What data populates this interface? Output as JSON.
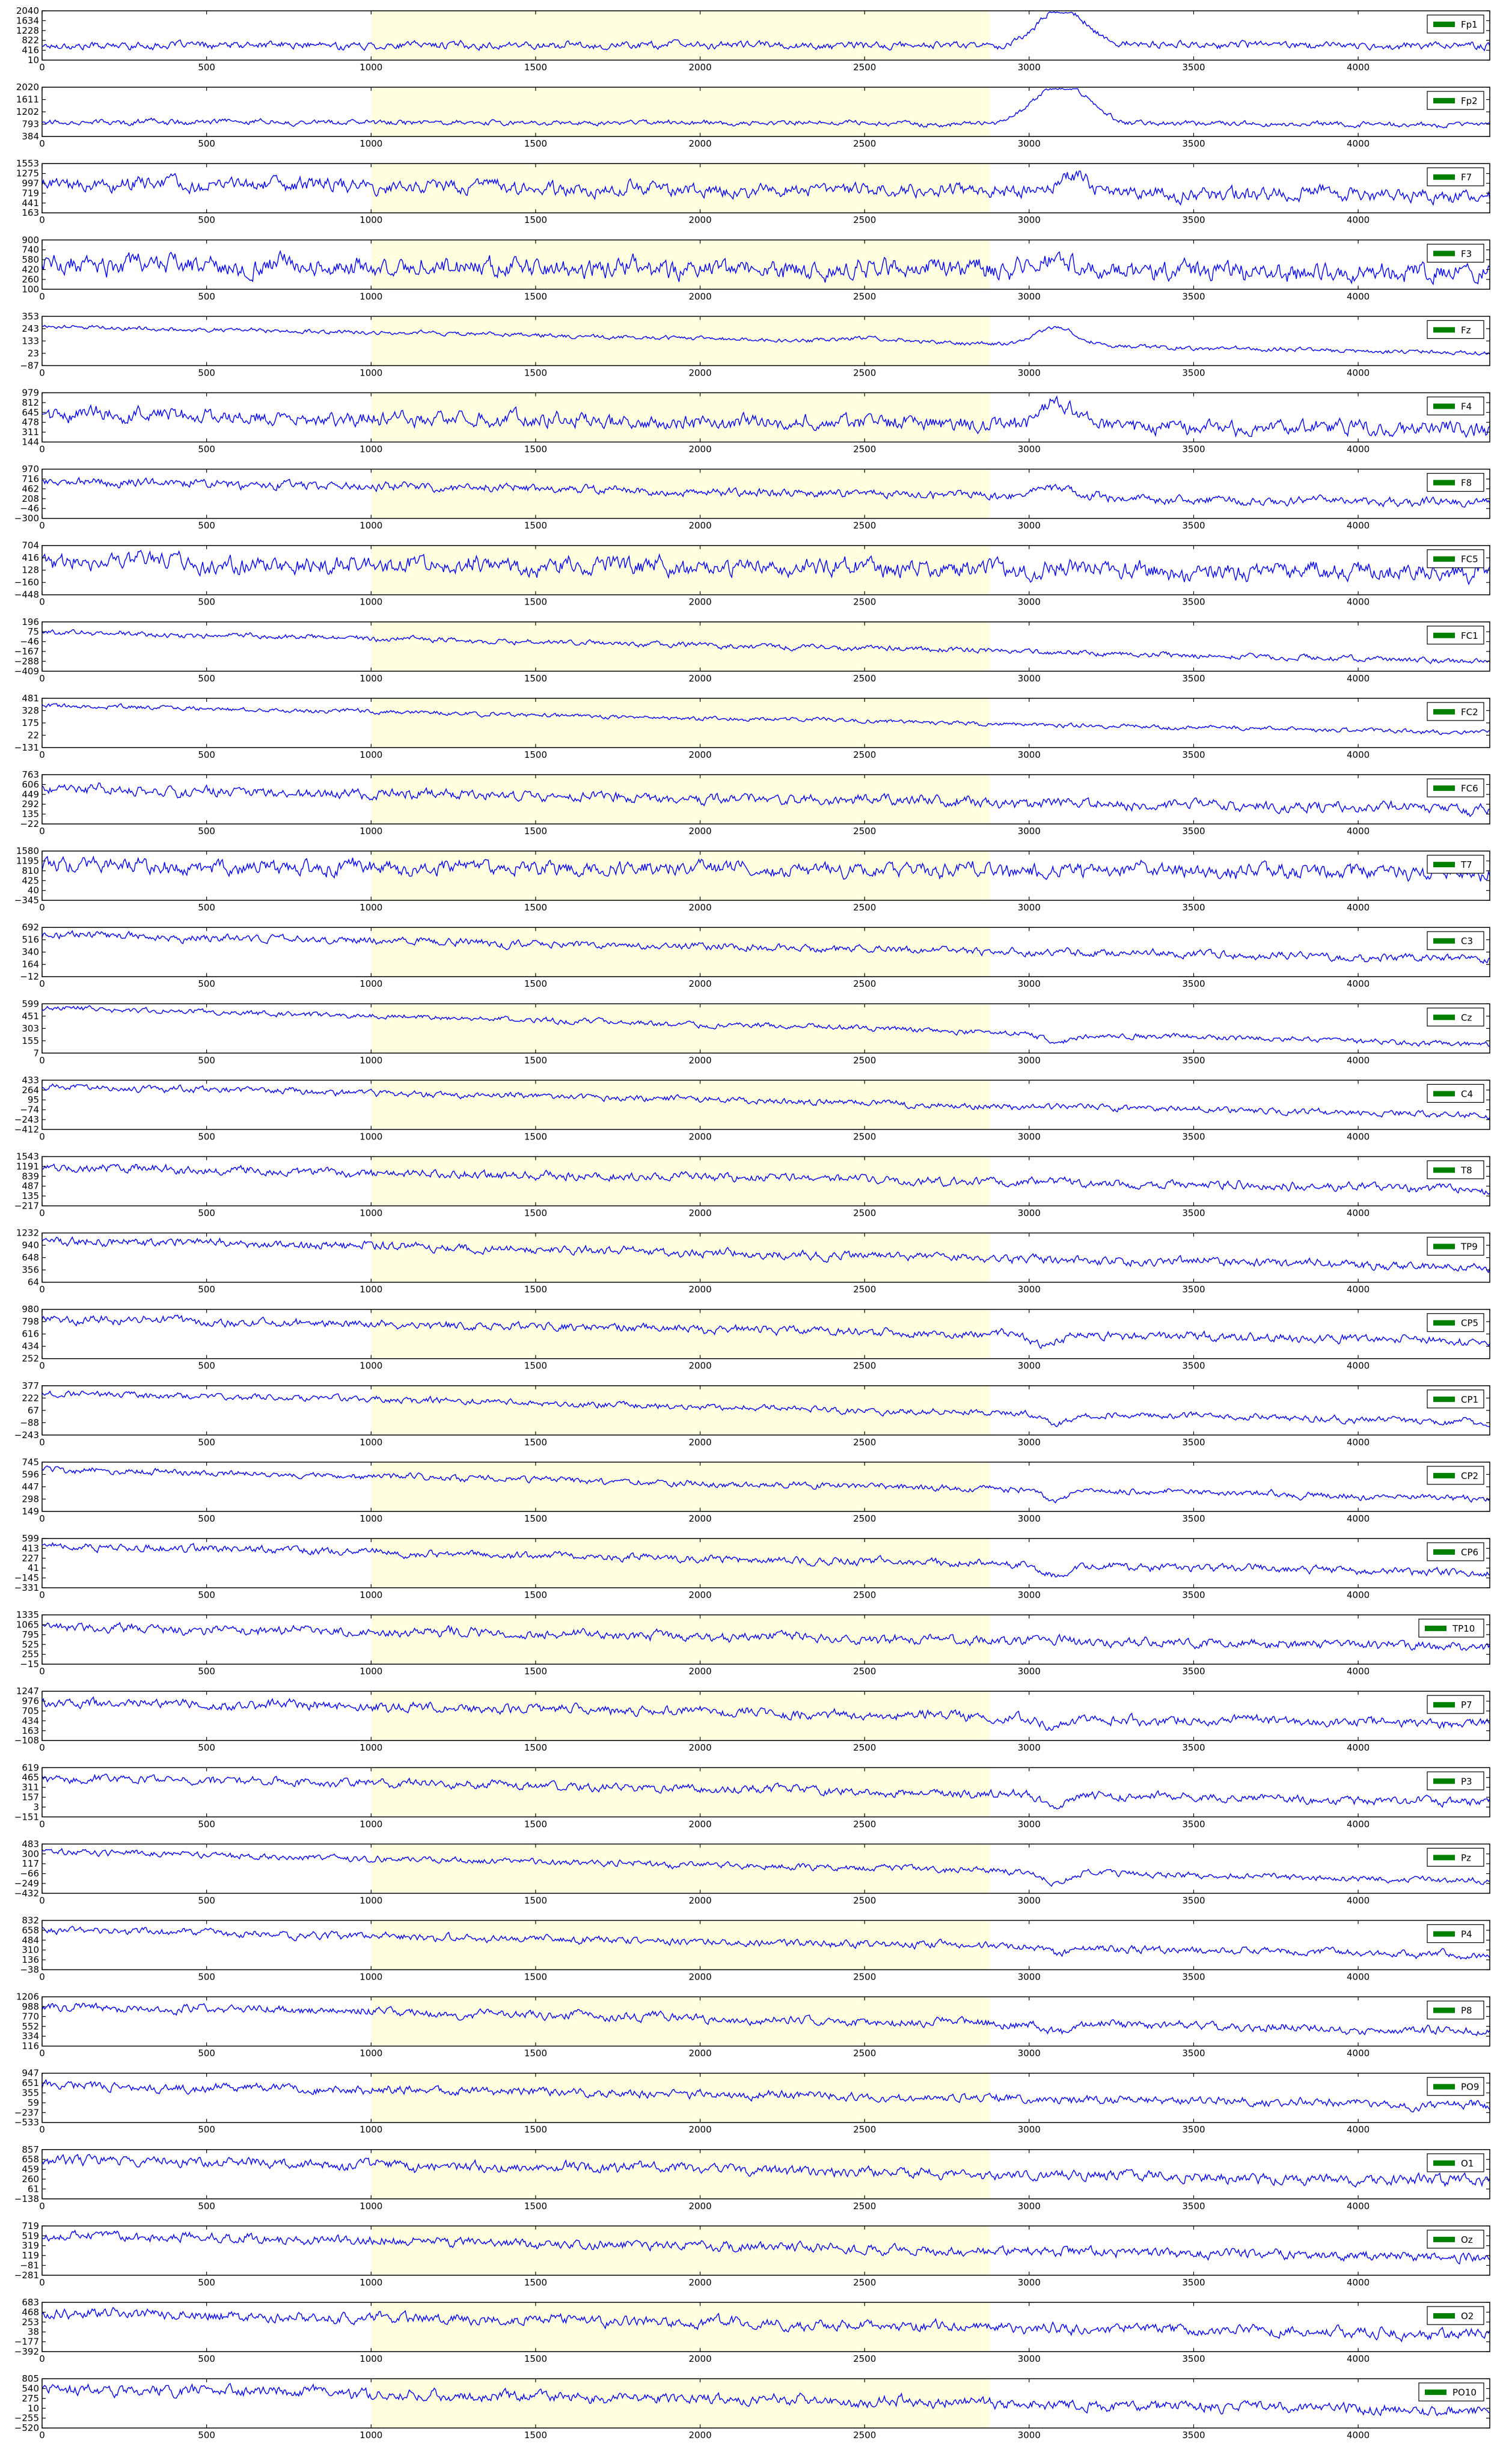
{
  "chart_data": {
    "type": "line",
    "layout": "stacked-subplots",
    "x_ticks": [
      0,
      500,
      1000,
      1500,
      2000,
      2500,
      3000,
      3500,
      4000
    ],
    "xlim": [
      0,
      4400
    ],
    "highlight_span": [
      1000,
      2880
    ],
    "grid": false,
    "legend": "top-right",
    "series_color": "#0000ff",
    "legend_swatch_color": "#008000",
    "highlight_color": "#ffffe0",
    "subplots": [
      {
        "name": "Fp1",
        "y_ticks": [
          "10",
          "416",
          "822",
          "1228",
          "1634",
          "2040"
        ],
        "ylim": [
          10,
          2040
        ],
        "base": 0.3,
        "noise": 0.07,
        "trend": 0.0,
        "bumps": [
          [
            3100,
            70,
            0.78
          ]
        ]
      },
      {
        "name": "Fp2",
        "y_ticks": [
          "384",
          "793",
          "1202",
          "1611",
          "2020"
        ],
        "ylim": [
          384,
          2020
        ],
        "base": 0.3,
        "noise": 0.05,
        "trend": -0.05,
        "bumps": [
          [
            3100,
            80,
            0.8
          ]
        ]
      },
      {
        "name": "F7",
        "y_ticks": [
          "163",
          "441",
          "719",
          "997",
          "1275",
          "1553"
        ],
        "ylim": [
          163,
          1553
        ],
        "base": 0.6,
        "noise": 0.13,
        "trend": -0.25,
        "bumps": [
          [
            3130,
            50,
            0.3
          ]
        ]
      },
      {
        "name": "F3",
        "y_ticks": [
          "100",
          "260",
          "420",
          "580",
          "740",
          "900"
        ],
        "ylim": [
          100,
          900
        ],
        "base": 0.5,
        "noise": 0.18,
        "trend": -0.15,
        "bumps": [
          [
            3080,
            50,
            0.3
          ]
        ]
      },
      {
        "name": "Fz",
        "y_ticks": [
          "-87",
          "23",
          "133",
          "243",
          "353"
        ],
        "ylim": [
          -87,
          353
        ],
        "base": 0.8,
        "noise": 0.04,
        "trend": -0.55,
        "bumps": [
          [
            3080,
            60,
            0.35
          ],
          [
            2550,
            90,
            0.08
          ]
        ]
      },
      {
        "name": "F4",
        "y_ticks": [
          "144",
          "311",
          "478",
          "645",
          "812",
          "979"
        ],
        "ylim": [
          144,
          979
        ],
        "base": 0.55,
        "noise": 0.14,
        "trend": -0.3,
        "bumps": [
          [
            3080,
            50,
            0.4
          ]
        ]
      },
      {
        "name": "F8",
        "y_ticks": [
          "-300",
          "-46",
          "208",
          "462",
          "716",
          "970"
        ],
        "ylim": [
          -300,
          970
        ],
        "base": 0.75,
        "noise": 0.08,
        "trend": -0.45,
        "bumps": [
          [
            3080,
            60,
            0.2
          ]
        ]
      },
      {
        "name": "FC5",
        "y_ticks": [
          "-448",
          "-160",
          "128",
          "416",
          "704"
        ],
        "ylim": [
          -448,
          704
        ],
        "base": 0.65,
        "noise": 0.16,
        "trend": -0.2,
        "bumps": []
      },
      {
        "name": "FC1",
        "y_ticks": [
          "-409",
          "-288",
          "-167",
          "-46",
          "75",
          "196"
        ],
        "ylim": [
          -409,
          196
        ],
        "base": 0.8,
        "noise": 0.05,
        "trend": -0.6,
        "bumps": []
      },
      {
        "name": "FC2",
        "y_ticks": [
          "-131",
          "22",
          "175",
          "328",
          "481"
        ],
        "ylim": [
          -131,
          481
        ],
        "base": 0.85,
        "noise": 0.04,
        "trend": -0.55,
        "bumps": []
      },
      {
        "name": "FC6",
        "y_ticks": [
          "-22",
          "135",
          "292",
          "449",
          "606",
          "763"
        ],
        "ylim": [
          -22,
          763
        ],
        "base": 0.7,
        "noise": 0.1,
        "trend": -0.4,
        "bumps": []
      },
      {
        "name": "T7",
        "y_ticks": [
          "-345",
          "40",
          "425",
          "810",
          "1195",
          "1580"
        ],
        "ylim": [
          -345,
          1580
        ],
        "base": 0.7,
        "noise": 0.14,
        "trend": -0.15,
        "bumps": []
      },
      {
        "name": "C3",
        "y_ticks": [
          "-12",
          "164",
          "340",
          "516",
          "692"
        ],
        "ylim": [
          -12,
          692
        ],
        "base": 0.85,
        "noise": 0.07,
        "trend": -0.5,
        "bumps": []
      },
      {
        "name": "Cz",
        "y_ticks": [
          "7",
          "155",
          "303",
          "451",
          "599"
        ],
        "ylim": [
          7,
          599
        ],
        "base": 0.92,
        "noise": 0.05,
        "trend": -0.75,
        "bumps": [
          [
            3080,
            50,
            -0.15
          ]
        ]
      },
      {
        "name": "C4",
        "y_ticks": [
          "-412",
          "-243",
          "-74",
          "95",
          "264",
          "433"
        ],
        "ylim": [
          -412,
          433
        ],
        "base": 0.88,
        "noise": 0.06,
        "trend": -0.6,
        "bumps": []
      },
      {
        "name": "T8",
        "y_ticks": [
          "-217",
          "135",
          "487",
          "839",
          "1191",
          "1543"
        ],
        "ylim": [
          -217,
          1543
        ],
        "base": 0.78,
        "noise": 0.08,
        "trend": -0.45,
        "bumps": []
      },
      {
        "name": "TP9",
        "y_ticks": [
          "64",
          "356",
          "648",
          "940",
          "1232"
        ],
        "ylim": [
          64,
          1232
        ],
        "base": 0.85,
        "noise": 0.08,
        "trend": -0.55,
        "bumps": []
      },
      {
        "name": "CP5",
        "y_ticks": [
          "252",
          "434",
          "616",
          "798",
          "980"
        ],
        "ylim": [
          252,
          980
        ],
        "base": 0.8,
        "noise": 0.08,
        "trend": -0.45,
        "bumps": [
          [
            3050,
            40,
            -0.2
          ]
        ]
      },
      {
        "name": "CP1",
        "y_ticks": [
          "-243",
          "-88",
          "67",
          "222",
          "377"
        ],
        "ylim": [
          -243,
          377
        ],
        "base": 0.85,
        "noise": 0.06,
        "trend": -0.6,
        "bumps": [
          [
            3080,
            40,
            -0.2
          ]
        ]
      },
      {
        "name": "CP2",
        "y_ticks": [
          "149",
          "298",
          "447",
          "596",
          "745"
        ],
        "ylim": [
          149,
          745
        ],
        "base": 0.85,
        "noise": 0.06,
        "trend": -0.6,
        "bumps": [
          [
            3080,
            40,
            -0.2
          ]
        ]
      },
      {
        "name": "CP6",
        "y_ticks": [
          "-331",
          "-145",
          "41",
          "227",
          "413",
          "599"
        ],
        "ylim": [
          -331,
          599
        ],
        "base": 0.85,
        "noise": 0.07,
        "trend": -0.55,
        "bumps": [
          [
            3080,
            40,
            -0.2
          ]
        ]
      },
      {
        "name": "TP10",
        "y_ticks": [
          "-15",
          "255",
          "525",
          "795",
          "1065",
          "1335"
        ],
        "ylim": [
          -15,
          1335
        ],
        "base": 0.75,
        "noise": 0.09,
        "trend": -0.4,
        "bumps": []
      },
      {
        "name": "P7",
        "y_ticks": [
          "-108",
          "163",
          "434",
          "705",
          "976",
          "1247"
        ],
        "ylim": [
          -108,
          1247
        ],
        "base": 0.78,
        "noise": 0.09,
        "trend": -0.45,
        "bumps": [
          [
            3080,
            40,
            -0.15
          ]
        ]
      },
      {
        "name": "P3",
        "y_ticks": [
          "-151",
          "3",
          "157",
          "311",
          "465",
          "619"
        ],
        "ylim": [
          -151,
          619
        ],
        "base": 0.8,
        "noise": 0.08,
        "trend": -0.5,
        "bumps": [
          [
            3080,
            40,
            -0.2
          ]
        ]
      },
      {
        "name": "Pz",
        "y_ticks": [
          "-432",
          "-249",
          "-66",
          "117",
          "300",
          "483"
        ],
        "ylim": [
          -432,
          483
        ],
        "base": 0.85,
        "noise": 0.06,
        "trend": -0.6,
        "bumps": [
          [
            3080,
            40,
            -0.2
          ]
        ]
      },
      {
        "name": "P4",
        "y_ticks": [
          "-38",
          "136",
          "310",
          "484",
          "658",
          "832"
        ],
        "ylim": [
          -38,
          832
        ],
        "base": 0.8,
        "noise": 0.07,
        "trend": -0.5,
        "bumps": [
          [
            3080,
            40,
            -0.15
          ]
        ]
      },
      {
        "name": "P8",
        "y_ticks": [
          "116",
          "334",
          "552",
          "770",
          "988",
          "1206"
        ],
        "ylim": [
          116,
          1206
        ],
        "base": 0.8,
        "noise": 0.08,
        "trend": -0.5,
        "bumps": [
          [
            3080,
            40,
            -0.2
          ]
        ]
      },
      {
        "name": "PO9",
        "y_ticks": [
          "-533",
          "-237",
          "59",
          "355",
          "651",
          "947"
        ],
        "ylim": [
          -533,
          947
        ],
        "base": 0.75,
        "noise": 0.08,
        "trend": -0.4,
        "bumps": []
      },
      {
        "name": "O1",
        "y_ticks": [
          "-138",
          "61",
          "260",
          "459",
          "658",
          "857"
        ],
        "ylim": [
          -138,
          857
        ],
        "base": 0.8,
        "noise": 0.1,
        "trend": -0.45,
        "bumps": []
      },
      {
        "name": "Oz",
        "y_ticks": [
          "-281",
          "-81",
          "119",
          "319",
          "519",
          "719"
        ],
        "ylim": [
          -281,
          719
        ],
        "base": 0.8,
        "noise": 0.09,
        "trend": -0.45,
        "bumps": []
      },
      {
        "name": "O2",
        "y_ticks": [
          "-392",
          "-177",
          "38",
          "253",
          "468",
          "683"
        ],
        "ylim": [
          -392,
          683
        ],
        "base": 0.8,
        "noise": 0.1,
        "trend": -0.45,
        "bumps": []
      },
      {
        "name": "PO10",
        "y_ticks": [
          "-520",
          "-255",
          "10",
          "275",
          "540",
          "805"
        ],
        "ylim": [
          -520,
          805
        ],
        "base": 0.8,
        "noise": 0.1,
        "trend": -0.45,
        "bumps": []
      }
    ]
  }
}
